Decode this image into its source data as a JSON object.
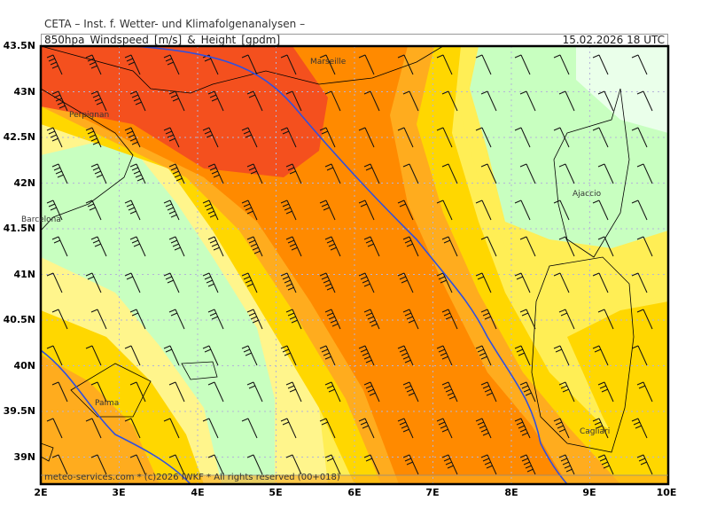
{
  "header": {
    "organization": "CETA – Inst. f. Wetter- und Klimafolgenanalysen –",
    "product": "850hpa_Windspeed_[m/s]_&_Height_[gpdm]",
    "valid_time": "15.02.2026  18 UTC"
  },
  "axes": {
    "latitudes": [
      "43.5N",
      "43N",
      "42.5N",
      "42N",
      "41.5N",
      "41N",
      "40.5N",
      "40N",
      "39.5N",
      "39N"
    ],
    "longitudes": [
      "2E",
      "3E",
      "4E",
      "5E",
      "6E",
      "7E",
      "8E",
      "9E",
      "10E"
    ]
  },
  "cities": [
    "Marseille",
    "Perpignan",
    "Barcelona",
    "Ajaccio",
    "Palma",
    "Cagliari"
  ],
  "footer": "meteo-services.com * (c)2026 IWKF * All rights reserved (00+018)",
  "colors": {
    "red": "#f4501e",
    "dark_orange": "#ff8a00",
    "orange": "#ffac1e",
    "gold": "#ffd700",
    "yellow": "#ffee55",
    "pale_yellow": "#fff58c",
    "light_green": "#c8ffc0",
    "pale_green": "#eaffea",
    "height_contour": "#3050e0"
  }
}
